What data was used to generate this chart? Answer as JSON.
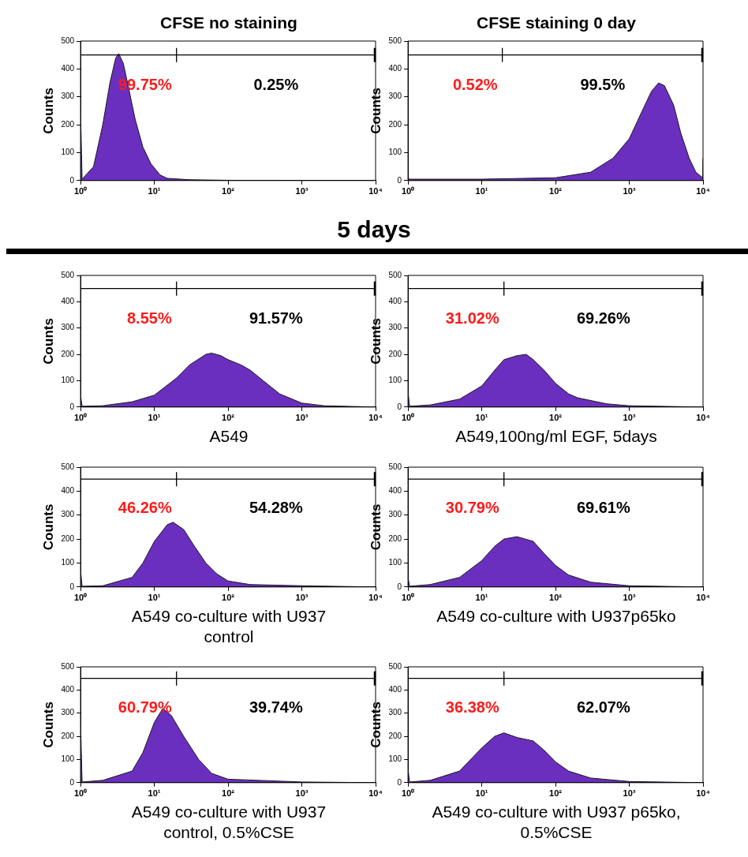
{
  "chart_data": [
    {
      "type": "area",
      "title": "CFSE no staining",
      "ylabel": "Counts",
      "log": "x",
      "legend": false,
      "grid": false,
      "xlim": [
        1,
        10000
      ],
      "ylim": [
        0,
        500
      ],
      "xticks": [
        {
          "value": 1,
          "label": "10⁰"
        },
        {
          "value": 10,
          "label": "10¹"
        },
        {
          "value": 100,
          "label": "10²"
        },
        {
          "value": 1000,
          "label": "10³"
        },
        {
          "value": 10000,
          "label": "10⁴"
        }
      ],
      "yticks": [
        0,
        100,
        200,
        300,
        400,
        500
      ],
      "ref_lines": [
        {
          "axis": "y",
          "value": 450
        },
        {
          "axis": "x",
          "value": 20
        }
      ],
      "annotations": [
        "99.75%",
        "0.25%"
      ],
      "series": [
        {
          "color": "#6b2fbf",
          "x": [
            1,
            1.05,
            1.5,
            2,
            2.5,
            3,
            3.3,
            3.8,
            4.5,
            5.5,
            7,
            9,
            12,
            15,
            30,
            100,
            1000,
            10000
          ],
          "values": [
            250,
            5,
            50,
            200,
            350,
            440,
            455,
            420,
            330,
            220,
            120,
            60,
            20,
            8,
            3,
            1,
            0,
            0
          ]
        }
      ]
    },
    {
      "type": "area",
      "title": "CFSE staining 0 day",
      "ylabel": "Counts",
      "log": "x",
      "legend": false,
      "grid": false,
      "xlim": [
        1,
        10000
      ],
      "ylim": [
        0,
        500
      ],
      "xticks": [
        {
          "value": 1,
          "label": "10⁰"
        },
        {
          "value": 10,
          "label": "10¹"
        },
        {
          "value": 100,
          "label": "10²"
        },
        {
          "value": 1000,
          "label": "10³"
        },
        {
          "value": 10000,
          "label": "10⁴"
        }
      ],
      "yticks": [
        0,
        100,
        200,
        300,
        400,
        500
      ],
      "ref_lines": [
        {
          "axis": "y",
          "value": 450
        },
        {
          "axis": "x",
          "value": 19
        }
      ],
      "annotations": [
        "0.52%",
        "99.5%"
      ],
      "series": [
        {
          "color": "#6b2fbf",
          "x": [
            1,
            1.05,
            10,
            100,
            300,
            600,
            1000,
            1500,
            2000,
            2500,
            3000,
            4000,
            5000,
            6500,
            8000,
            9900,
            10000
          ],
          "values": [
            10,
            5,
            5,
            10,
            30,
            80,
            150,
            250,
            320,
            350,
            340,
            270,
            170,
            80,
            30,
            10,
            80
          ]
        }
      ]
    },
    {
      "type": "area",
      "subtitle": "5 days",
      "xlabel": "A549",
      "ylabel": "Counts",
      "log": "x",
      "legend": false,
      "grid": false,
      "xlim": [
        1,
        10000
      ],
      "ylim": [
        0,
        500
      ],
      "xticks": [
        {
          "value": 1,
          "label": "10⁰"
        },
        {
          "value": 10,
          "label": "10¹"
        },
        {
          "value": 100,
          "label": "10²"
        },
        {
          "value": 1000,
          "label": "10³"
        },
        {
          "value": 10000,
          "label": "10⁴"
        }
      ],
      "yticks": [
        0,
        100,
        200,
        300,
        400,
        500
      ],
      "ref_lines": [
        {
          "axis": "y",
          "value": 450
        },
        {
          "axis": "x",
          "value": 20
        }
      ],
      "annotations": [
        "8.55%",
        "91.57%"
      ],
      "series": [
        {
          "color": "#6b2fbf",
          "x": [
            1,
            1.05,
            2,
            5,
            10,
            20,
            30,
            50,
            60,
            80,
            100,
            150,
            200,
            300,
            500,
            1000,
            2000,
            10000
          ],
          "values": [
            45,
            3,
            5,
            20,
            45,
            110,
            160,
            200,
            205,
            195,
            180,
            160,
            140,
            100,
            50,
            15,
            5,
            0
          ]
        }
      ]
    },
    {
      "type": "area",
      "xlabel": "A549,100ng/ml EGF, 5days",
      "ylabel": "Counts",
      "log": "x",
      "legend": false,
      "grid": false,
      "xlim": [
        1,
        10000
      ],
      "ylim": [
        0,
        500
      ],
      "xticks": [
        {
          "value": 1,
          "label": "10⁰"
        },
        {
          "value": 10,
          "label": "10¹"
        },
        {
          "value": 100,
          "label": "10²"
        },
        {
          "value": 1000,
          "label": "10³"
        },
        {
          "value": 10000,
          "label": "10⁴"
        }
      ],
      "yticks": [
        0,
        100,
        200,
        300,
        400,
        500
      ],
      "ref_lines": [
        {
          "axis": "y",
          "value": 450
        },
        {
          "axis": "x",
          "value": 20
        }
      ],
      "annotations": [
        "31.02%",
        "69.26%"
      ],
      "series": [
        {
          "color": "#6b2fbf",
          "x": [
            1,
            1.05,
            2,
            5,
            10,
            15,
            20,
            30,
            40,
            50,
            70,
            100,
            150,
            200,
            500,
            1000,
            10000
          ],
          "values": [
            60,
            3,
            8,
            30,
            80,
            140,
            180,
            195,
            200,
            180,
            140,
            90,
            50,
            35,
            12,
            5,
            0
          ]
        }
      ]
    },
    {
      "type": "area",
      "xlabel": "A549 co-culture with U937\ncontrol",
      "ylabel": "Counts",
      "log": "x",
      "legend": false,
      "grid": false,
      "xlim": [
        1,
        10000
      ],
      "ylim": [
        0,
        500
      ],
      "xticks": [
        {
          "value": 1,
          "label": "10⁰"
        },
        {
          "value": 10,
          "label": "10¹"
        },
        {
          "value": 100,
          "label": "10²"
        },
        {
          "value": 1000,
          "label": "10³"
        },
        {
          "value": 10000,
          "label": "10⁴"
        }
      ],
      "yticks": [
        0,
        100,
        200,
        300,
        400,
        500
      ],
      "ref_lines": [
        {
          "axis": "y",
          "value": 450
        },
        {
          "axis": "x",
          "value": 20
        }
      ],
      "annotations": [
        "46.26%",
        "54.28%"
      ],
      "series": [
        {
          "color": "#6b2fbf",
          "x": [
            1,
            1.05,
            2,
            5,
            7,
            10,
            15,
            18,
            25,
            35,
            50,
            70,
            100,
            200,
            1000,
            10000
          ],
          "values": [
            70,
            3,
            5,
            40,
            100,
            190,
            260,
            270,
            240,
            170,
            100,
            55,
            25,
            10,
            5,
            0
          ]
        }
      ]
    },
    {
      "type": "area",
      "xlabel": "A549 co-culture with U937p65ko",
      "ylabel": "Counts",
      "log": "x",
      "legend": false,
      "grid": false,
      "xlim": [
        1,
        10000
      ],
      "ylim": [
        0,
        500
      ],
      "xticks": [
        {
          "value": 1,
          "label": "10⁰"
        },
        {
          "value": 10,
          "label": "10¹"
        },
        {
          "value": 100,
          "label": "10²"
        },
        {
          "value": 1000,
          "label": "10³"
        },
        {
          "value": 10000,
          "label": "10⁴"
        }
      ],
      "yticks": [
        0,
        100,
        200,
        300,
        400,
        500
      ],
      "ref_lines": [
        {
          "axis": "y",
          "value": 450
        },
        {
          "axis": "x",
          "value": 20
        }
      ],
      "annotations": [
        "30.79%",
        "69.61%"
      ],
      "series": [
        {
          "color": "#6b2fbf",
          "x": [
            1,
            1.05,
            2,
            5,
            10,
            15,
            20,
            30,
            50,
            70,
            100,
            150,
            300,
            1000,
            10000
          ],
          "values": [
            40,
            3,
            10,
            40,
            110,
            170,
            200,
            210,
            190,
            140,
            90,
            50,
            20,
            5,
            0
          ]
        }
      ]
    },
    {
      "type": "area",
      "xlabel": "A549 co-culture with U937\ncontrol, 0.5%CSE",
      "ylabel": "Counts",
      "log": "x",
      "legend": false,
      "grid": false,
      "xlim": [
        1,
        10000
      ],
      "ylim": [
        0,
        500
      ],
      "xticks": [
        {
          "value": 1,
          "label": "10⁰"
        },
        {
          "value": 10,
          "label": "10¹"
        },
        {
          "value": 100,
          "label": "10²"
        },
        {
          "value": 1000,
          "label": "10³"
        },
        {
          "value": 10000,
          "label": "10⁴"
        }
      ],
      "yticks": [
        0,
        100,
        200,
        300,
        400,
        500
      ],
      "ref_lines": [
        {
          "axis": "y",
          "value": 450
        },
        {
          "axis": "x",
          "value": 20
        }
      ],
      "annotations": [
        "60.79%",
        "39.74%"
      ],
      "series": [
        {
          "color": "#6b2fbf",
          "x": [
            1,
            1.05,
            2,
            5,
            7,
            10,
            13,
            17,
            25,
            40,
            60,
            100,
            1000,
            10000
          ],
          "values": [
            260,
            3,
            10,
            50,
            130,
            260,
            320,
            290,
            200,
            100,
            40,
            15,
            3,
            0
          ]
        }
      ]
    },
    {
      "type": "area",
      "xlabel": "A549 co-culture with U937 p65ko,\n0.5%CSE",
      "ylabel": "Counts",
      "log": "x",
      "legend": false,
      "grid": false,
      "xlim": [
        1,
        10000
      ],
      "ylim": [
        0,
        500
      ],
      "xticks": [
        {
          "value": 1,
          "label": "10⁰"
        },
        {
          "value": 10,
          "label": "10¹"
        },
        {
          "value": 100,
          "label": "10²"
        },
        {
          "value": 1000,
          "label": "10³"
        },
        {
          "value": 10000,
          "label": "10⁴"
        }
      ],
      "yticks": [
        0,
        100,
        200,
        300,
        400,
        500
      ],
      "ref_lines": [
        {
          "axis": "y",
          "value": 450
        },
        {
          "axis": "x",
          "value": 20
        }
      ],
      "annotations": [
        "36.38%",
        "62.07%"
      ],
      "series": [
        {
          "color": "#6b2fbf",
          "x": [
            1,
            1.05,
            2,
            5,
            10,
            15,
            20,
            30,
            50,
            70,
            100,
            150,
            300,
            1000,
            10000
          ],
          "values": [
            60,
            3,
            10,
            50,
            150,
            200,
            215,
            195,
            180,
            140,
            90,
            50,
            20,
            5,
            0
          ]
        }
      ]
    }
  ]
}
